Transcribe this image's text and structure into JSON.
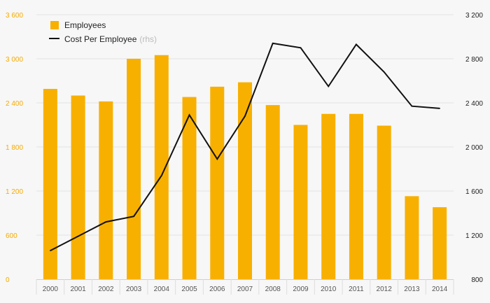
{
  "colors": {
    "bar": "#f8b000",
    "line": "#111111",
    "grid": "#e3e3e3",
    "left_axis_text": "#f5aa00",
    "right_axis_text": "#222222",
    "background": "#f7f7f7"
  },
  "chart_data": {
    "type": "bar",
    "categories": [
      "2000",
      "2001",
      "2002",
      "2003",
      "2004",
      "2005",
      "2006",
      "2007",
      "2008",
      "2009",
      "2010",
      "2011",
      "2012",
      "2013",
      "2014"
    ],
    "series": [
      {
        "name": "Employees",
        "type": "bar",
        "axis": "left",
        "values": [
          2590,
          2500,
          2420,
          3000,
          3050,
          2480,
          2620,
          2680,
          2370,
          2100,
          2250,
          2250,
          2090,
          1130,
          980
        ]
      },
      {
        "name": "Cost Per Employee",
        "axis_note": "(rhs)",
        "type": "line",
        "axis": "right",
        "values": [
          1060,
          1190,
          1320,
          1370,
          1740,
          2290,
          1890,
          2280,
          2940,
          2900,
          2550,
          2930,
          2680,
          2370,
          2350
        ]
      }
    ],
    "y_left": {
      "min": 0,
      "max": 3600,
      "ticks": [
        0,
        600,
        1200,
        1800,
        2400,
        3000,
        3600
      ],
      "tick_labels": [
        "0",
        "600",
        "1 200",
        "1 800",
        "2 400",
        "3 000",
        "3 600"
      ]
    },
    "y_right": {
      "min": 800,
      "max": 3200,
      "ticks": [
        800,
        1200,
        1600,
        2000,
        2400,
        2800,
        3200
      ],
      "tick_labels": [
        "800",
        "1 200",
        "1 600",
        "2 000",
        "2 400",
        "2 800",
        "3 200"
      ]
    },
    "grid": true,
    "legend_placement": "top-left"
  }
}
